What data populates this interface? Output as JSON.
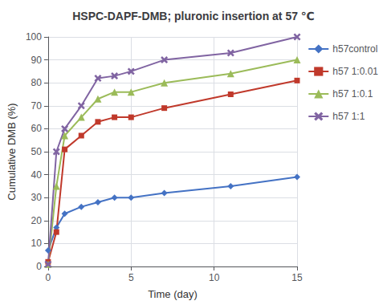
{
  "chart_data": {
    "type": "line",
    "title": "HSPC-DAPF-DMB; pluronic insertion at 57 ℃",
    "x_label": "Time (day)",
    "y_label": "Cumulative DMB (%)",
    "x": [
      0,
      0.5,
      1,
      2,
      3,
      4,
      5,
      7,
      11,
      15
    ],
    "series": [
      {
        "name": "h57control",
        "color": "#4472C4",
        "marker": "diamond",
        "values": [
          7,
          17,
          23,
          26,
          28,
          30,
          30,
          32,
          35,
          39
        ]
      },
      {
        "name": "h57 1:0.01",
        "color": "#C0392B",
        "marker": "square",
        "values": [
          2,
          15,
          51,
          57,
          63,
          65,
          65,
          69,
          75,
          81
        ]
      },
      {
        "name": "h57 1:0.1",
        "color": "#9BBB59",
        "marker": "triangle",
        "values": [
          1,
          35,
          57,
          65,
          73,
          76,
          76,
          80,
          84,
          90
        ]
      },
      {
        "name": "h57 1:1",
        "color": "#8064A2",
        "marker": "x",
        "values": [
          1,
          50,
          60,
          70,
          82,
          83,
          85,
          90,
          93,
          100
        ]
      }
    ],
    "xlim": [
      0,
      15
    ],
    "xticks": [
      0,
      5,
      10,
      15
    ],
    "ylim": [
      0,
      100
    ],
    "yticks": [
      0,
      10,
      20,
      30,
      40,
      50,
      60,
      70,
      80,
      90,
      100
    ],
    "grid": true,
    "legend": "right"
  }
}
